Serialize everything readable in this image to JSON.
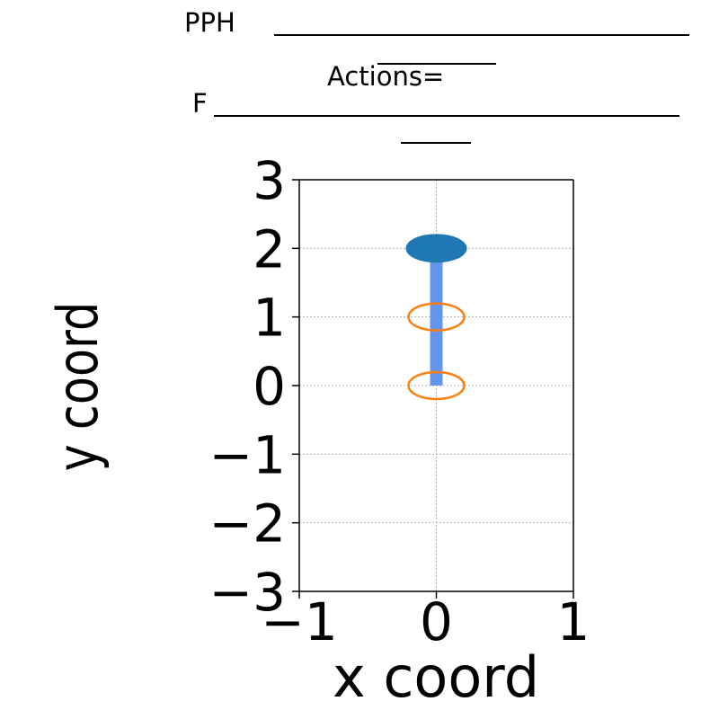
{
  "chart_data": {
    "type": "line",
    "title_lines": [
      "PPH",
      "Actions=",
      "F"
    ],
    "xlabel": "x coord",
    "ylabel": "y coord",
    "xlim": [
      -1,
      1
    ],
    "ylim": [
      -3,
      3
    ],
    "xticks": [
      -1,
      0,
      1
    ],
    "yticks": [
      -3,
      -2,
      -1,
      0,
      1,
      2,
      3
    ],
    "xtick_labels": [
      "−1",
      "0",
      "1"
    ],
    "ytick_labels": [
      "−3",
      "−2",
      "−1",
      "0",
      "1",
      "2",
      "3"
    ],
    "grid": true,
    "series": [
      {
        "kind": "path",
        "color": "#6495ed",
        "points": [
          [
            0,
            0
          ],
          [
            0,
            1
          ],
          [
            0,
            2
          ]
        ]
      },
      {
        "kind": "hollow-markers",
        "color": "#ff7f0e",
        "points": [
          [
            0,
            0
          ],
          [
            0,
            1
          ]
        ]
      },
      {
        "kind": "filled-marker",
        "color": "#1f77b4",
        "points": [
          [
            0,
            2
          ]
        ]
      }
    ]
  }
}
